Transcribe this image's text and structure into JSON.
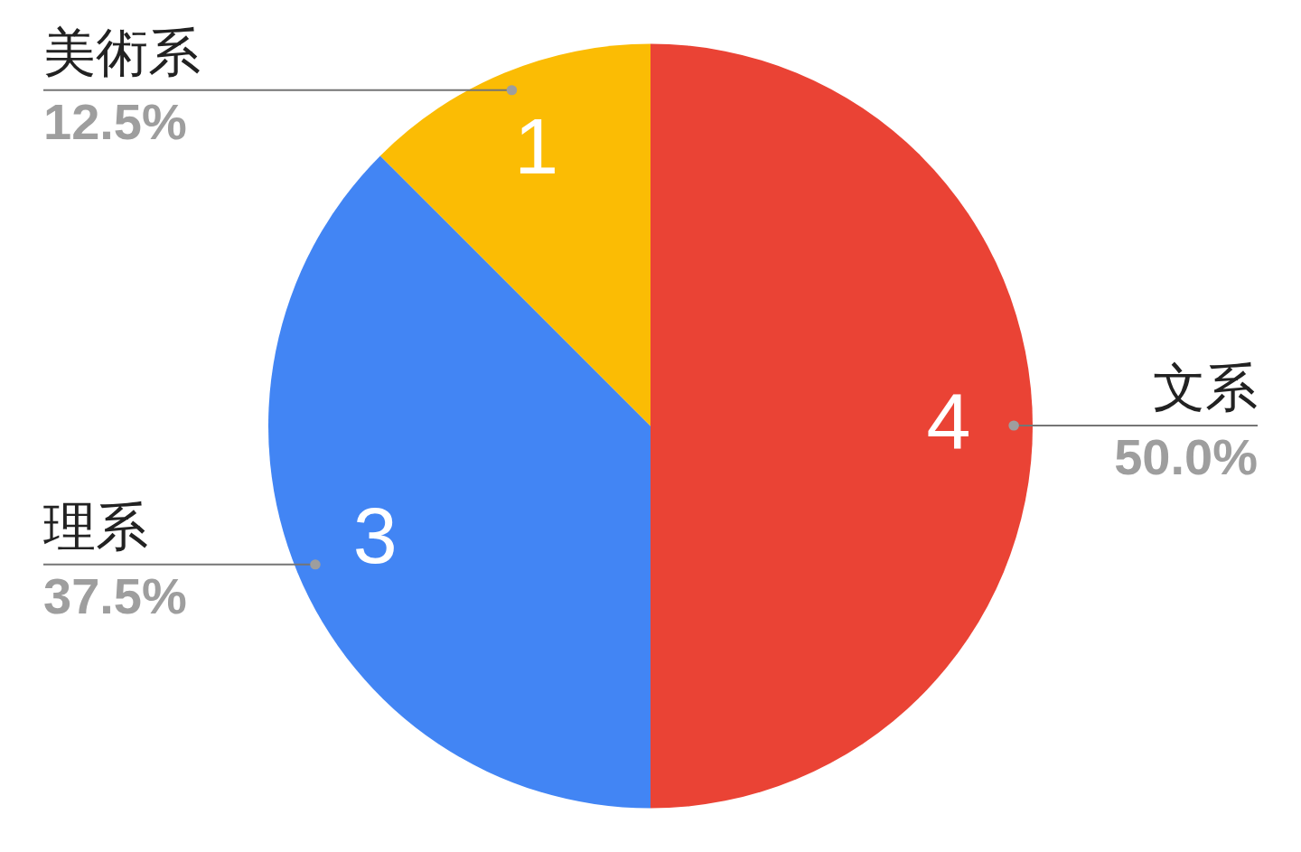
{
  "chart_data": {
    "type": "pie",
    "categories": [
      "文系",
      "理系",
      "美術系"
    ],
    "values": [
      50.0,
      37.5,
      12.5
    ],
    "colors": [
      "#ea4335",
      "#4285f4",
      "#fbbc04"
    ],
    "value_labels": [
      "50.0%",
      "37.5%",
      "12.5%"
    ],
    "annotations": [
      {
        "text": "4",
        "x": "文系"
      },
      {
        "text": "3",
        "x": "理系"
      },
      {
        "text": "1",
        "x": "美術系"
      }
    ]
  }
}
